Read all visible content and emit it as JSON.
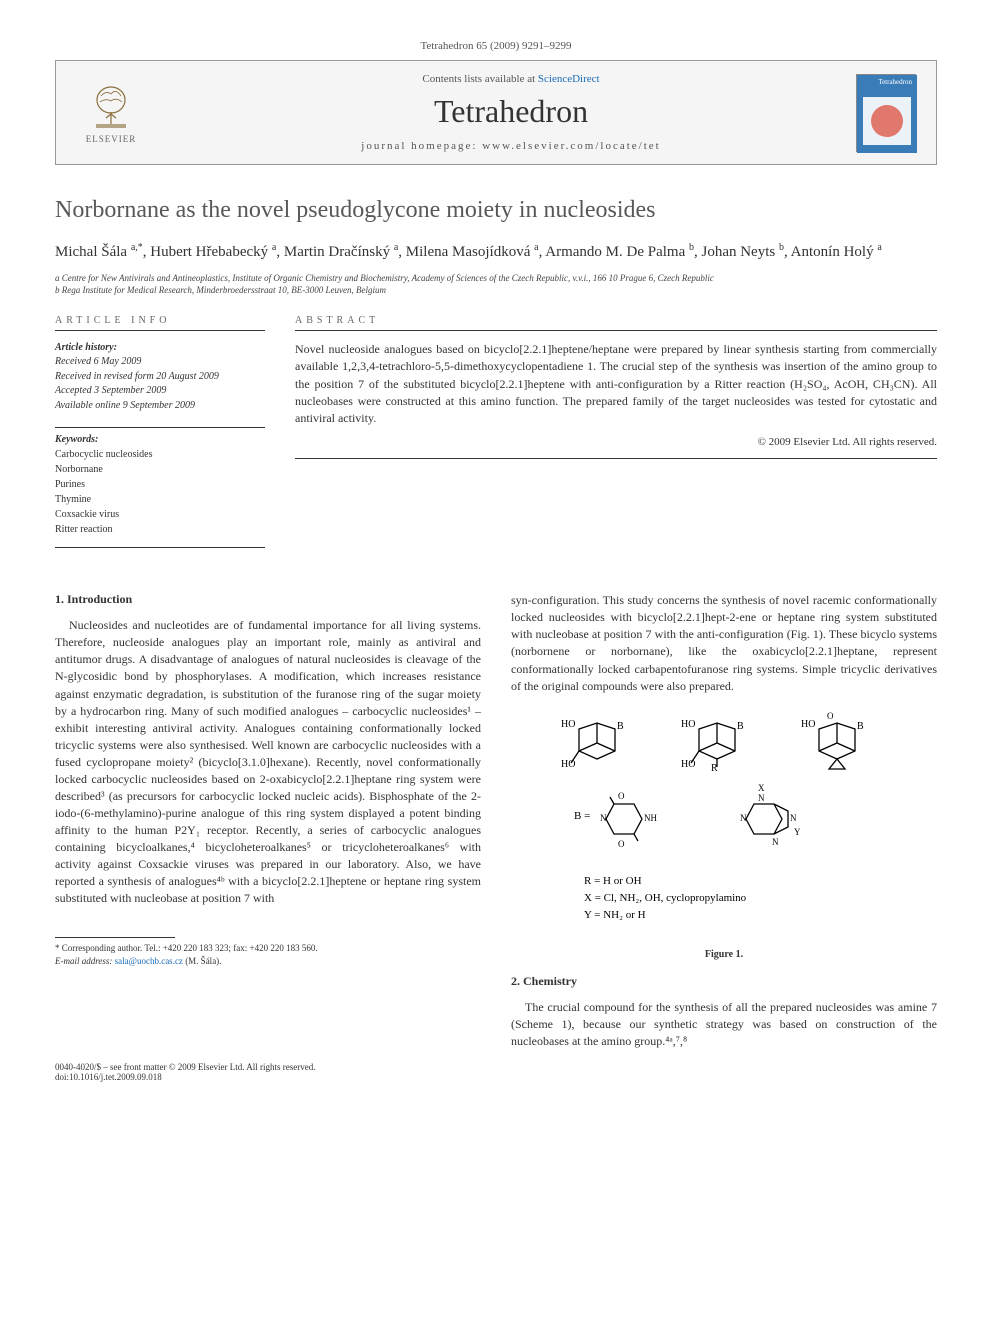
{
  "citation": "Tetrahedron 65 (2009) 9291–9299",
  "header": {
    "contents_prefix": "Contents lists available at ",
    "contents_link": "ScienceDirect",
    "journal": "Tetrahedron",
    "homepage_prefix": "journal homepage: ",
    "homepage_url": "www.elsevier.com/locate/tet",
    "publisher_logo_text": "ELSEVIER",
    "cover_label": "Tetrahedron"
  },
  "title": "Norbornane as the novel pseudoglycone moiety in nucleosides",
  "authors_html": "Michal Šála <sup>a,*</sup>, Hubert Hřebabecký <sup>a</sup>, Martin Dračínský <sup>a</sup>, Milena Masojídková <sup>a</sup>, Armando M. De Palma <sup>b</sup>, Johan Neyts <sup>b</sup>, Antonín Holý <sup>a</sup>",
  "affiliations": [
    "a Centre for New Antivirals and Antineoplastics, Institute of Organic Chemistry and Biochemistry, Academy of Sciences of the Czech Republic, v.v.i., 166 10 Prague 6, Czech Republic",
    "b Rega Institute for Medical Research, Minderbroedersstraat 10, BE-3000 Leuven, Belgium"
  ],
  "article_info": {
    "label": "ARTICLE INFO",
    "history_label": "Article history:",
    "history": [
      "Received 6 May 2009",
      "Received in revised form 20 August 2009",
      "Accepted 3 September 2009",
      "Available online 9 September 2009"
    ],
    "keywords_label": "Keywords:",
    "keywords": [
      "Carbocyclic nucleosides",
      "Norbornane",
      "Purines",
      "Thymine",
      "Coxsackie virus",
      "Ritter reaction"
    ]
  },
  "abstract": {
    "label": "ABSTRACT",
    "text": "Novel nucleoside analogues based on bicyclo[2.2.1]heptene/heptane were prepared by linear synthesis starting from commercially available 1,2,3,4-tetrachloro-5,5-dimethoxycyclopentadiene 1. The crucial step of the synthesis was insertion of the amino group to the position 7 of the substituted bicyclo[2.2.1]heptene with anti-configuration by a Ritter reaction (H₂SO₄, AcOH, CH₃CN). All nucleobases were constructed at this amino function. The prepared family of the target nucleosides was tested for cytostatic and antiviral activity.",
    "copyright": "© 2009 Elsevier Ltd. All rights reserved."
  },
  "sections": {
    "intro_heading": "1. Introduction",
    "intro_para": "Nucleosides and nucleotides are of fundamental importance for all living systems. Therefore, nucleoside analogues play an important role, mainly as antiviral and antitumor drugs. A disadvantage of analogues of natural nucleosides is cleavage of the N-glycosidic bond by phosphorylases. A modification, which increases resistance against enzymatic degradation, is substitution of the furanose ring of the sugar moiety by a hydrocarbon ring. Many of such modified analogues – carbocyclic nucleosides¹ – exhibit interesting antiviral activity. Analogues containing conformationally locked tricyclic systems were also synthesised. Well known are carbocyclic nucleosides with a fused cyclopropane moiety² (bicyclo[3.1.0]hexane). Recently, novel conformationally locked carbocyclic nucleosides based on 2-oxabicyclo[2.2.1]heptane ring system were described³ (as precursors for carbocyclic locked nucleic acids). Bisphosphate of the 2-iodo-(6-methylamino)-purine analogue of this ring system displayed a potent binding affinity to the human P2Y₁ receptor. Recently, a series of carbocyclic analogues containing bicycloalkanes,⁴ bicycloheteroalkanes⁵ or tricycloheteroalkanes⁶ with activity against Coxsackie viruses was prepared in our laboratory. Also, we have reported a synthesis of analogues⁴ᵇ with a bicyclo[2.2.1]heptene or heptane ring system substituted with nucleobase at position 7 with",
    "col2_para": "syn-configuration. This study concerns the synthesis of novel racemic conformationally locked nucleosides with bicyclo[2.2.1]hept-2-ene or heptane ring system substituted with nucleobase at position 7 with the anti-configuration (Fig. 1). These bicyclo systems (norbornene or norbornane), like the oxabicyclo[2.2.1]heptane, represent conformationally locked carbapentofuranose ring systems. Simple tricyclic derivatives of the original compounds were also prepared.",
    "chem_heading": "2. Chemistry",
    "chem_para": "The crucial compound for the synthesis of all the prepared nucleosides was amine 7 (Scheme 1), because our synthetic strategy was based on construction of the nucleobases at the amino group.⁴ᵃ,⁷,⁸"
  },
  "figure1": {
    "label": "Figure 1.",
    "legend_lines": [
      "R = H or OH",
      "X = Cl, NH₂, OH, cyclopropylamino",
      "Y = NH₂ or H"
    ]
  },
  "footer": {
    "corresponding": "* Corresponding author. Tel.: +420 220 183 323; fax: +420 220 183 560.",
    "email_label": "E-mail address:",
    "email": "sala@uochb.cas.cz",
    "email_name": "(M. Šála).",
    "issn": "0040-4020/$ – see front matter © 2009 Elsevier Ltd. All rights reserved.",
    "doi": "doi:10.1016/j.tet.2009.09.018"
  },
  "colors": {
    "link": "#1a6bb8",
    "text": "#333333",
    "light_text": "#666666",
    "border": "#333333"
  }
}
